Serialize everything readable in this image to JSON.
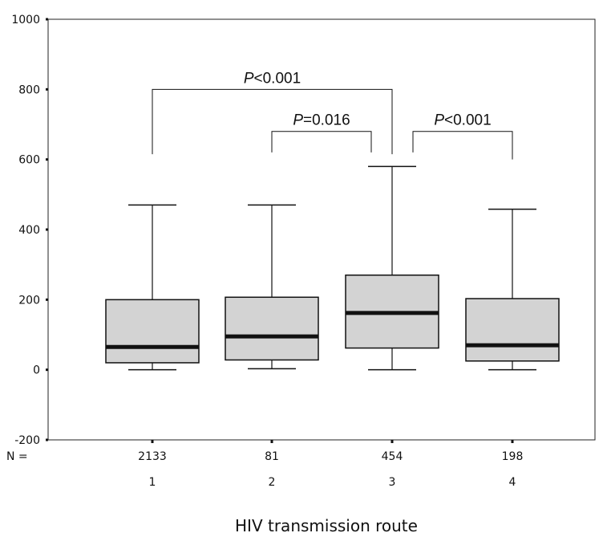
{
  "chart_data": {
    "type": "box",
    "xlabel": "HIV transmission route",
    "ylim": [
      -200,
      1000
    ],
    "yticks": [
      -200,
      0,
      200,
      400,
      600,
      800,
      1000
    ],
    "n_label": "N =",
    "categories": [
      "1",
      "2",
      "3",
      "4"
    ],
    "n": [
      "2133",
      "81",
      "454",
      "198"
    ],
    "boxes": [
      {
        "category": "1",
        "min": 0,
        "q1": 20,
        "median": 65,
        "q3": 200,
        "max": 470
      },
      {
        "category": "2",
        "min": 3,
        "q1": 28,
        "median": 95,
        "q3": 207,
        "max": 470
      },
      {
        "category": "3",
        "min": 0,
        "q1": 62,
        "median": 162,
        "q3": 270,
        "max": 580
      },
      {
        "category": "4",
        "min": 0,
        "q1": 25,
        "median": 70,
        "q3": 203,
        "max": 458
      }
    ],
    "annotations": [
      {
        "from": "1",
        "to": "3",
        "italic": "P",
        "text": "<0.001",
        "y": 800,
        "leg_low_from": 615,
        "leg_low_to": 615
      },
      {
        "from": "2",
        "to": "3",
        "italic": "P",
        "text": "=0.016",
        "y": 680,
        "leg_low_from": 620,
        "leg_low_to": 620
      },
      {
        "from": "3",
        "to": "4",
        "italic": "P",
        "text": "<0.001",
        "y": 680,
        "leg_low_from": 620,
        "leg_low_to": 600
      }
    ]
  }
}
